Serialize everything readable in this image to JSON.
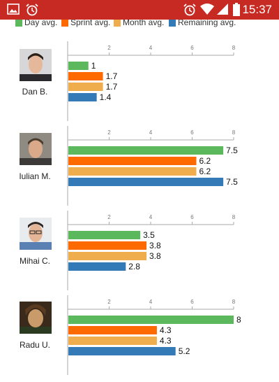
{
  "status_bar": {
    "time": "15:37",
    "left_icons": [
      "image-icon",
      "alarm-icon"
    ],
    "right_icons": [
      "alarm-icon",
      "wifi-icon",
      "signal-icon",
      "battery-icon"
    ],
    "bar_color": "#c62a22"
  },
  "legend": {
    "items": [
      {
        "label": "Day avg.",
        "color": "#5cb85c"
      },
      {
        "label": "Sprint avg.",
        "color": "#ff6a00"
      },
      {
        "label": "Month avg.",
        "color": "#f0ad4e"
      },
      {
        "label": "Remaining avg.",
        "color": "#337ab7"
      }
    ]
  },
  "people": [
    {
      "name": "Dan B."
    },
    {
      "name": "Iulian M."
    },
    {
      "name": "Mihai C."
    },
    {
      "name": "Radu U."
    }
  ],
  "chart_data": [
    {
      "type": "bar",
      "orientation": "horizontal",
      "categories": [
        "Day avg.",
        "Sprint avg.",
        "Month avg.",
        "Remaining avg."
      ],
      "values": [
        1,
        1.7,
        1.7,
        1.4
      ],
      "value_labels": [
        "1",
        "1.7",
        "1.7",
        "1.4"
      ],
      "xlim": [
        0,
        8
      ],
      "xticks": [
        "2",
        "4",
        "6",
        "8"
      ]
    },
    {
      "type": "bar",
      "orientation": "horizontal",
      "categories": [
        "Day avg.",
        "Sprint avg.",
        "Month avg.",
        "Remaining avg."
      ],
      "values": [
        7.5,
        6.2,
        6.2,
        7.5
      ],
      "value_labels": [
        "7.5",
        "6.2",
        "6.2",
        "7.5"
      ],
      "xlim": [
        0,
        8
      ],
      "xticks": [
        "2",
        "4",
        "6",
        "8"
      ]
    },
    {
      "type": "bar",
      "orientation": "horizontal",
      "categories": [
        "Day avg.",
        "Sprint avg.",
        "Month avg.",
        "Remaining avg."
      ],
      "values": [
        3.5,
        3.8,
        3.8,
        2.8
      ],
      "value_labels": [
        "3.5",
        "3.8",
        "3.8",
        "2.8"
      ],
      "xlim": [
        0,
        8
      ],
      "xticks": [
        "2",
        "4",
        "6",
        "8"
      ]
    },
    {
      "type": "bar",
      "orientation": "horizontal",
      "categories": [
        "Day avg.",
        "Sprint avg.",
        "Month avg.",
        "Remaining avg."
      ],
      "values": [
        8,
        4.3,
        4.3,
        5.2
      ],
      "value_labels": [
        "8",
        "4.3",
        "4.3",
        "5.2"
      ],
      "xlim": [
        0,
        8
      ],
      "xticks": [
        "2",
        "4",
        "6",
        "8"
      ]
    }
  ]
}
